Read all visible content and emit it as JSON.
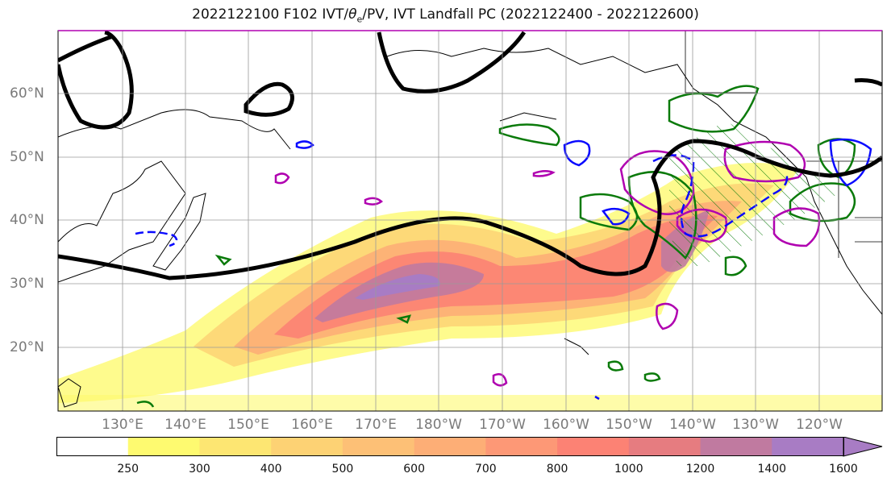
{
  "title_prefix": "2022122100 F102 IVT/",
  "title_theta": "θ",
  "title_sub": "e",
  "title_suffix": "/PV, IVT Landfall PC (2022122400 - 2022122600)",
  "lat_labels": [
    "60°N",
    "50°N",
    "40°N",
    "30°N",
    "20°N"
  ],
  "lon_labels": [
    "130°E",
    "140°E",
    "150°E",
    "160°E",
    "170°E",
    "180°W",
    "170°W",
    "160°W",
    "150°W",
    "140°W",
    "130°W",
    "120°W"
  ],
  "colorbar": {
    "ticks": [
      "250",
      "300",
      "400",
      "500",
      "600",
      "700",
      "800",
      "1000",
      "1200",
      "1400",
      "1600"
    ],
    "colors": [
      "#ffffff",
      "#fefa70",
      "#fde672",
      "#fdd274",
      "#fdc076",
      "#fdae76",
      "#fd9876",
      "#fc8274",
      "#e67c80",
      "#c07aa0",
      "#a87cc4"
    ],
    "extend": "max"
  },
  "legend_colors": {
    "ivt_outline": "#000000",
    "theta_e": "#0a0aff",
    "pv": "#b000b0",
    "green": "#0a7a0a"
  }
}
